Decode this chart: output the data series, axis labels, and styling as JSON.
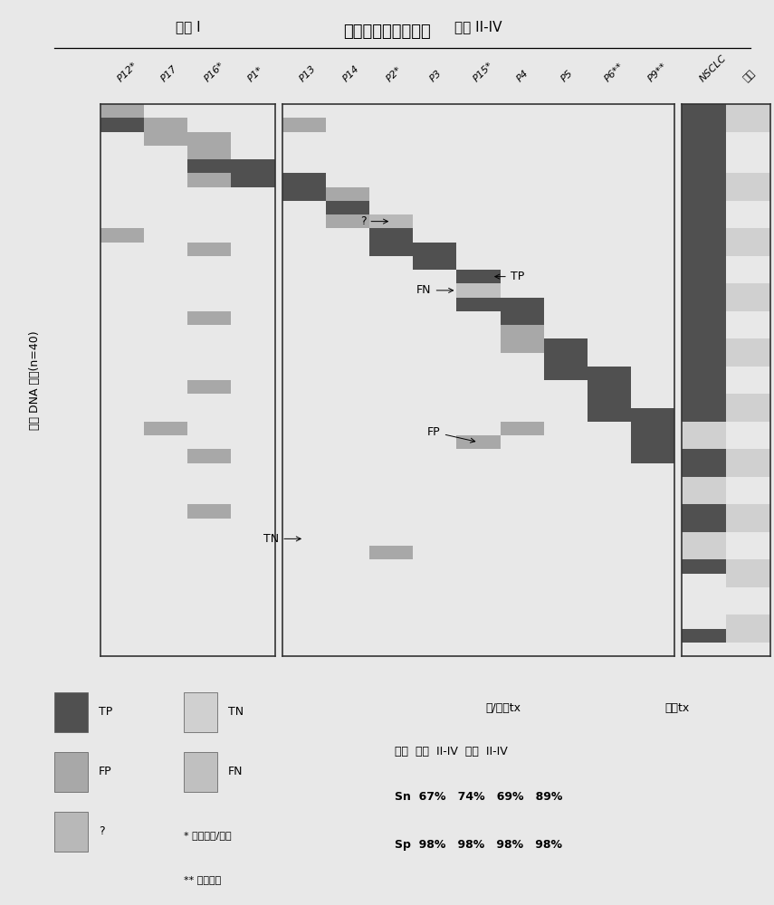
{
  "title": "患者特异性报道基因",
  "stage1_label": "阶段 I",
  "stage2_label": "阶段 II-IV",
  "ylabel": "血浆 DNA 样品(n=40)",
  "col_labels_stage1": [
    "P12*",
    "P17",
    "P16*",
    "P1*"
  ],
  "col_labels_stage2": [
    "P13",
    "P14",
    "P2*",
    "P3",
    "P15*",
    "P4",
    "P5",
    "P6**",
    "P9**"
  ],
  "col_labels_extra": [
    "NSCLC",
    "健康"
  ],
  "TP_color": "#505050",
  "FP_color": "#a8a8a8",
  "TN_color": "#d0d0d0",
  "FN_color": "#c0c0c0",
  "Q_color": "#b8b8b8",
  "white_color": "#f5f5f5",
  "bg_color": "#e8e8e8",
  "fig_bg": "#e8e8e8",
  "n_rows": 40,
  "n_s1": 4,
  "n_s2": 9,
  "title_fontsize": 13,
  "label_fontsize": 8,
  "stage_fontsize": 11,
  "legend_fontsize": 9,
  "note1": "* 包括插入/缺失",
  "note2": "** 包括融合",
  "stats_header1": "前/后一tx",
  "stats_header2": "前一tx",
  "stats_row0": "阶段  所有  II-IV  所有  II-IV",
  "stats_row1": "Sn  67%   74%   69%   89%",
  "stats_row2": "Sp  98%   98%   98%   98%"
}
